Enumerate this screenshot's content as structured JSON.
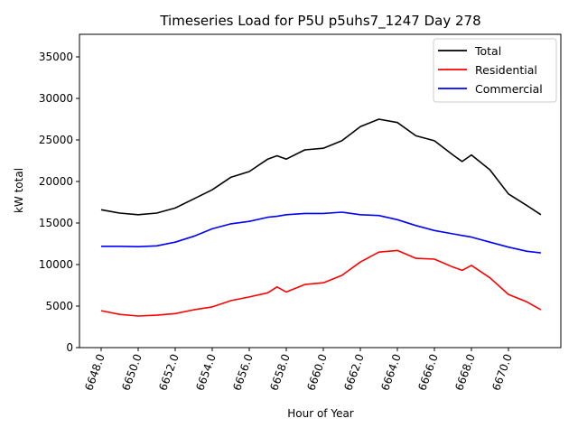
{
  "chart_data": {
    "type": "line",
    "title": "Timeseries Load for P5U p5uhs7_1247  Day 278",
    "xlabel": "Hour of Year",
    "ylabel": "kW total",
    "xlim": [
      6646.83,
      6672.83
    ],
    "ylim": [
      0,
      37717
    ],
    "grid": false,
    "legend_position": "top-right",
    "x_ticks": [
      6648,
      6650,
      6652,
      6654,
      6656,
      6658,
      6660,
      6662,
      6664,
      6666,
      6668,
      6670
    ],
    "x_tick_labels": [
      "6648.0",
      "6650.0",
      "6652.0",
      "6654.0",
      "6656.0",
      "6658.0",
      "6660.0",
      "6662.0",
      "6664.0",
      "6666.0",
      "6668.0",
      "6670.0"
    ],
    "y_ticks": [
      0,
      5000,
      10000,
      15000,
      20000,
      25000,
      30000,
      35000
    ],
    "y_tick_labels": [
      "0",
      "5000",
      "10000",
      "15000",
      "20000",
      "25000",
      "30000",
      "35000"
    ],
    "x": [
      6648,
      6649,
      6650,
      6651,
      6652,
      6653,
      6654,
      6655,
      6656,
      6657,
      6657.5,
      6658,
      6659,
      6660,
      6661,
      6662,
      6663,
      6664,
      6665,
      6666,
      6667,
      6667.5,
      6668,
      6669,
      6670,
      6671,
      6671.75
    ],
    "series": [
      {
        "name": "Total",
        "color": "#000000",
        "values": [
          16600,
          16200,
          16000,
          16200,
          16800,
          17900,
          19000,
          20500,
          21200,
          22700,
          23100,
          22700,
          23800,
          24000,
          24900,
          26600,
          27500,
          27100,
          25500,
          24900,
          23200,
          22400,
          23200,
          21400,
          18500,
          17100,
          16000
        ]
      },
      {
        "name": "Residential",
        "color": "#ff0000",
        "values": [
          4450,
          4000,
          3800,
          3900,
          4100,
          4550,
          4900,
          5650,
          6100,
          6600,
          7300,
          6700,
          7600,
          7800,
          8700,
          10300,
          11500,
          11700,
          10750,
          10650,
          9700,
          9300,
          9900,
          8400,
          6400,
          5500,
          4550
        ]
      },
      {
        "name": "Commercial",
        "color": "#0000ff",
        "values": [
          12200,
          12200,
          12150,
          12250,
          12700,
          13400,
          14300,
          14900,
          15200,
          15700,
          15800,
          16000,
          16150,
          16150,
          16300,
          16000,
          15900,
          15400,
          14700,
          14100,
          13700,
          13500,
          13300,
          12700,
          12100,
          11600,
          11400
        ]
      }
    ]
  }
}
